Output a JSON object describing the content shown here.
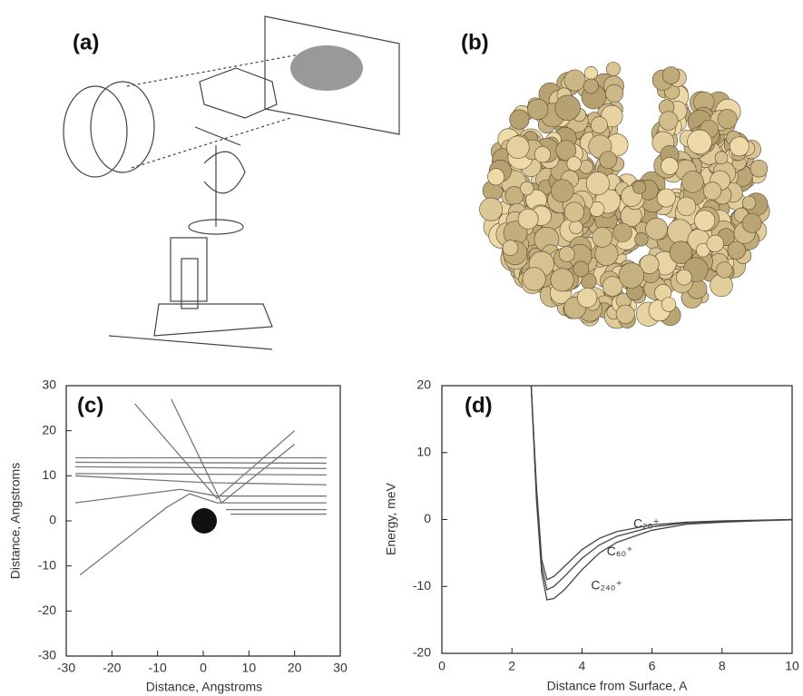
{
  "panel_labels": [
    "(a)",
    "(b)",
    "(c)",
    "(d)"
  ],
  "chart_data": [
    {
      "type": "line",
      "xlabel": "Distance, Angstroms",
      "ylabel": "Distance, Angstroms",
      "xlim": [
        -30,
        30
      ],
      "ylim": [
        -30,
        30
      ],
      "xticks": [
        -30,
        -20,
        -10,
        0,
        10,
        20,
        30
      ],
      "yticks": [
        -30,
        -20,
        -10,
        0,
        10,
        20,
        30
      ],
      "series": [
        {
          "color": "#777777",
          "x": [
            -28,
            27
          ],
          "values": [
            14,
            14
          ]
        },
        {
          "color": "#777777",
          "x": [
            -28,
            27
          ],
          "values": [
            13,
            12.8
          ]
        },
        {
          "color": "#777777",
          "x": [
            -28,
            27
          ],
          "values": [
            12,
            11.6
          ]
        },
        {
          "color": "#777777",
          "x": [
            -28,
            27
          ],
          "values": [
            10.5,
            10.2
          ]
        },
        {
          "color": "#777777",
          "x": [
            -28,
            0,
            27
          ],
          "values": [
            10,
            8.5,
            8
          ]
        },
        {
          "color": "#777777",
          "x": [
            -28,
            -5,
            3,
            27
          ],
          "values": [
            4,
            7,
            5.5,
            5.5
          ]
        },
        {
          "color": "#777777",
          "x": [
            -27,
            -8,
            -3,
            3,
            27
          ],
          "values": [
            -12,
            3,
            6,
            4,
            4
          ]
        },
        {
          "color": "#777777",
          "x": [
            -15,
            3,
            20
          ],
          "values": [
            26,
            5,
            20
          ]
        },
        {
          "color": "#777777",
          "x": [
            -7,
            4,
            20
          ],
          "values": [
            27,
            4,
            17
          ]
        },
        {
          "color": "#777777",
          "x": [
            5,
            27
          ],
          "values": [
            2.5,
            2.5
          ]
        },
        {
          "color": "#777777",
          "x": [
            6,
            27
          ],
          "values": [
            1.5,
            1.5
          ]
        }
      ]
    },
    {
      "type": "line",
      "xlabel": "Distance from Surface, A",
      "ylabel": "Energy, meV",
      "xlim": [
        0,
        10
      ],
      "ylim": [
        -20,
        20
      ],
      "xticks": [
        0,
        2,
        4,
        6,
        8,
        10
      ],
      "yticks": [
        -20,
        -10,
        0,
        10,
        20
      ],
      "x": [
        2.55,
        2.7,
        2.85,
        3.0,
        3.2,
        3.5,
        4,
        4.5,
        5,
        6,
        7,
        8,
        9,
        10
      ],
      "series": [
        {
          "name": "C₂₀⁺",
          "color": "#444444",
          "values": [
            20,
            5,
            -6,
            -9,
            -8.5,
            -7,
            -4.5,
            -2.8,
            -1.8,
            -0.8,
            -0.4,
            -0.2,
            -0.1,
            0
          ]
        },
        {
          "name": "C₆₀⁺",
          "color": "#444444",
          "values": [
            20,
            4,
            -7,
            -10.5,
            -10,
            -8.5,
            -5.8,
            -3.8,
            -2.5,
            -1.1,
            -0.5,
            -0.3,
            -0.15,
            0
          ]
        },
        {
          "name": "C₂₄₀⁺",
          "color": "#444444",
          "values": [
            20,
            3,
            -8,
            -12,
            -11.8,
            -10.5,
            -7.5,
            -5,
            -3.4,
            -1.6,
            -0.7,
            -0.4,
            -0.2,
            -0.05
          ]
        }
      ]
    }
  ]
}
